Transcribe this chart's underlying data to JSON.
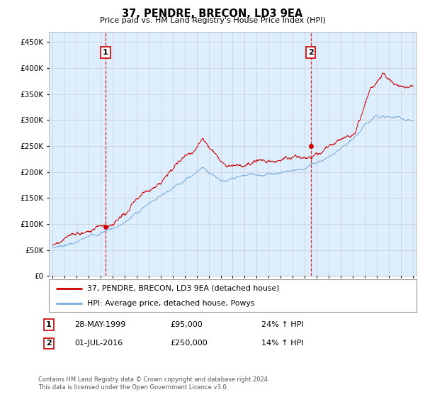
{
  "title": "37, PENDRE, BRECON, LD3 9EA",
  "subtitle": "Price paid vs. HM Land Registry's House Price Index (HPI)",
  "ytick_values": [
    0,
    50000,
    100000,
    150000,
    200000,
    250000,
    300000,
    350000,
    400000,
    450000
  ],
  "ylim": [
    0,
    470000
  ],
  "x_start_year": 1994.7,
  "x_end_year": 2025.3,
  "marker1": {
    "year": 1999.42,
    "value": 95000,
    "label": "1",
    "date": "28-MAY-1999",
    "price": "£95,000",
    "hpi": "24% ↑ HPI"
  },
  "marker2": {
    "year": 2016.5,
    "value": 250000,
    "label": "2",
    "date": "01-JUL-2016",
    "price": "£250,000",
    "hpi": "14% ↑ HPI"
  },
  "legend_line1": "37, PENDRE, BRECON, LD3 9EA (detached house)",
  "legend_line2": "HPI: Average price, detached house, Powys",
  "footer1": "Contains HM Land Registry data © Crown copyright and database right 2024.",
  "footer2": "This data is licensed under the Open Government Licence v3.0.",
  "price_color": "#cc0000",
  "hpi_color": "#7aacdc",
  "marker_color": "#cc0000",
  "grid_color": "#cccccc",
  "bg_color": "#ffffff",
  "plot_bg_color": "#ddeeff"
}
